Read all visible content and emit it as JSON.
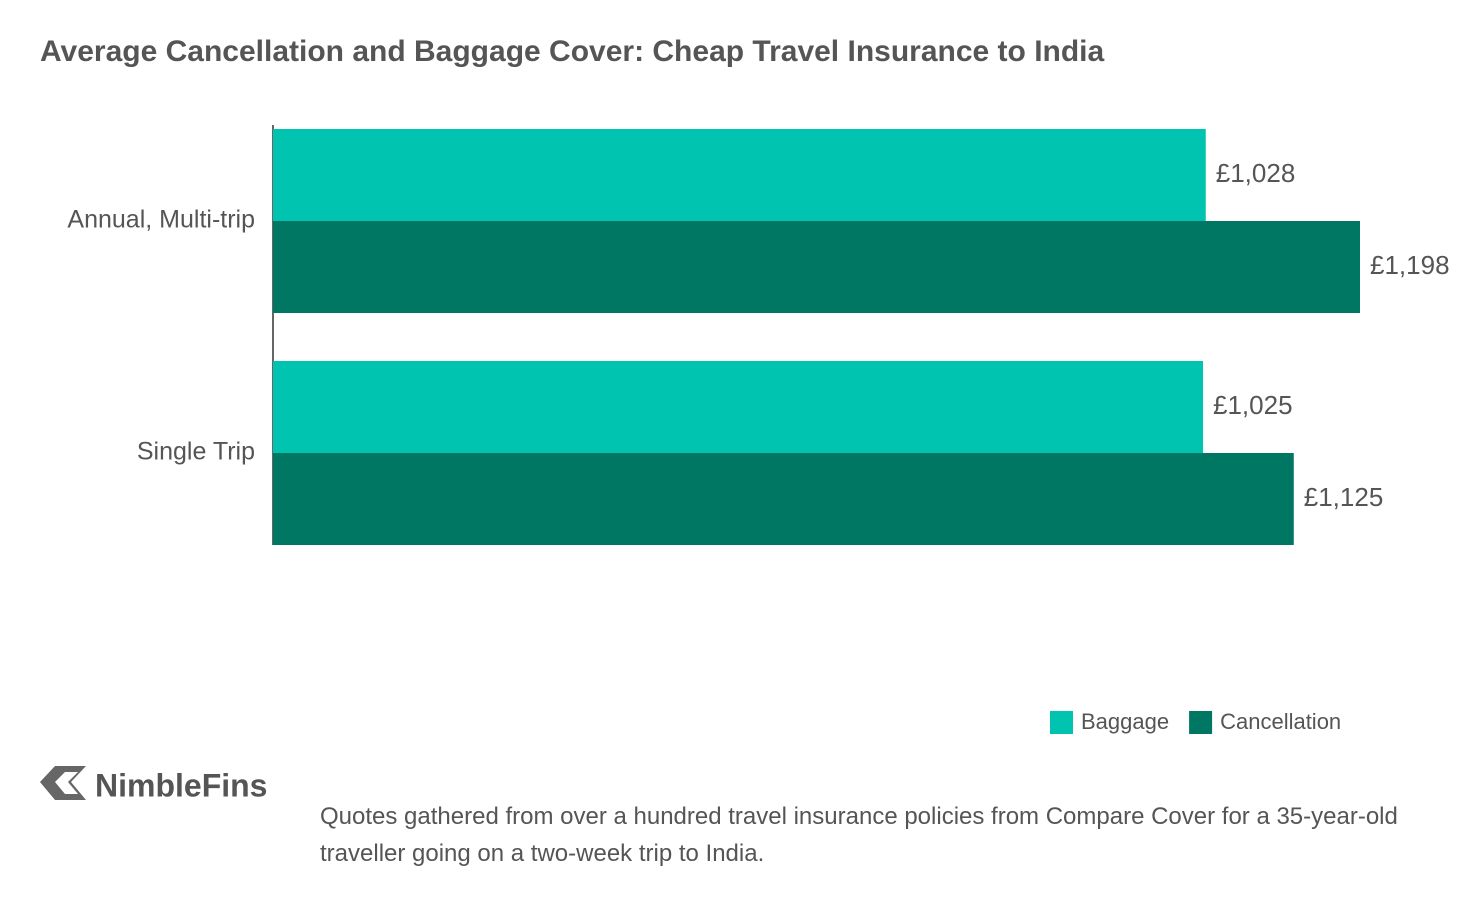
{
  "chart_data": {
    "type": "bar",
    "orientation": "horizontal",
    "title": "Average Cancellation and Baggage Cover: Cheap Travel Insurance to India",
    "categories": [
      "Annual, Multi-trip",
      "Single Trip"
    ],
    "series": [
      {
        "name": "Baggage",
        "color": "#00c4b0",
        "values": [
          1028,
          1025
        ],
        "value_labels": [
          "£1,028",
          "£1,025"
        ]
      },
      {
        "name": "Cancellation",
        "color": "#007763",
        "values": [
          1198,
          1125
        ],
        "value_labels": [
          "£1,198",
          "£1,125"
        ]
      }
    ],
    "legend": "bottom-right",
    "note": "Quotes gathered from over a hundred travel insurance policies from Compare Cover for a 35-year-old traveller going on a two-week trip to India."
  },
  "logo": "NimbleFins"
}
